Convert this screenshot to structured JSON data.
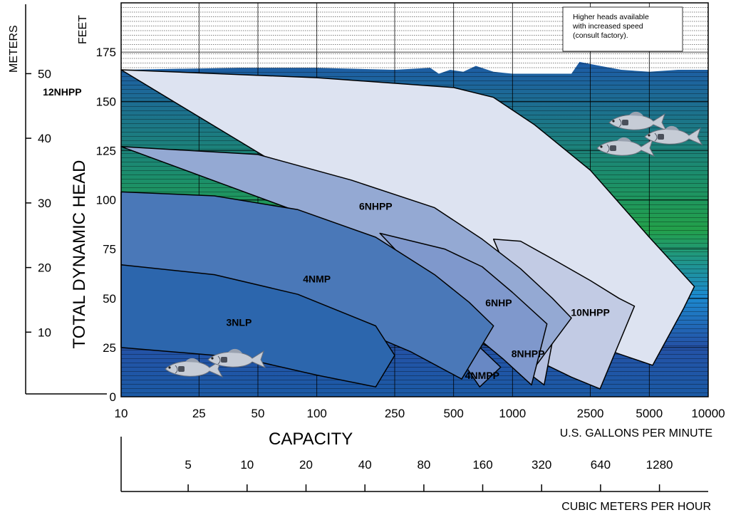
{
  "chart_data": {
    "type": "area",
    "title": "",
    "note_lines": [
      "Higher heads available",
      "with increased speed",
      "(consult factory)."
    ],
    "ylabel": "TOTAL DYNAMIC HEAD",
    "xlabel": "CAPACITY",
    "x_unit": "U.S. GALLONS PER MINUTE",
    "x_scale": "log",
    "xlim": [
      10,
      10000
    ],
    "x_ticks": [
      10,
      25,
      50,
      100,
      250,
      500,
      1000,
      2500,
      5000,
      10000
    ],
    "y_unit_feet": "FEET",
    "ylim_feet": [
      0,
      200
    ],
    "y_ticks_feet": [
      0,
      25,
      50,
      75,
      100,
      125,
      150,
      175
    ],
    "y_unit_meters": "METERS",
    "y_ticks_meters": [
      10,
      20,
      30,
      40,
      50
    ],
    "x2_unit": "CUBIC METERS PER HOUR",
    "x2_ticks": [
      5,
      10,
      20,
      40,
      80,
      160,
      320,
      640,
      1280
    ],
    "grid": true,
    "colors": {
      "12NHPP": "#dde3f1",
      "10NHPP": "#c2cbe4",
      "8NHPP": "#b4c0e0",
      "6NHPP": "#94a9d3",
      "6NHP": "#7f98cc",
      "4NMPP": "#6888c4",
      "4NMP": "#4a78b8",
      "3NLP": "#2c66ad",
      "water_top": "#1d5ba7",
      "water_green": "#23a04a",
      "water_blue": "#1c8ad0"
    },
    "series": [
      {
        "name": "12NHPP",
        "label_at": [
          5,
          153
        ],
        "points": [
          [
            10,
            166
          ],
          [
            100,
            162
          ],
          [
            500,
            157
          ],
          [
            800,
            152
          ],
          [
            1300,
            138
          ],
          [
            2500,
            115
          ],
          [
            5000,
            81
          ],
          [
            8500,
            56
          ],
          [
            7500,
            45
          ],
          [
            5200,
            16
          ],
          [
            3000,
            24
          ],
          [
            2000,
            33
          ],
          [
            1500,
            38
          ],
          [
            1000,
            46
          ]
        ]
      },
      {
        "name": "10NHPP",
        "label_at": [
          2500,
          41
        ],
        "points": [
          [
            800,
            80
          ],
          [
            1100,
            79
          ],
          [
            1600,
            70
          ],
          [
            2500,
            59
          ],
          [
            3500,
            50
          ],
          [
            4200,
            46
          ],
          [
            2800,
            4
          ],
          [
            2000,
            10
          ],
          [
            1500,
            16
          ]
        ]
      },
      {
        "name": "8NHPP",
        "label_at": [
          1200,
          20
        ],
        "points": [
          [
            950,
            56
          ],
          [
            1500,
            50
          ],
          [
            1650,
            35
          ],
          [
            1450,
            6
          ],
          [
            1100,
            15
          ]
        ]
      },
      {
        "name": "6NHPP",
        "label_at": [
          200,
          95
        ],
        "points": [
          [
            10,
            127
          ],
          [
            50,
            123
          ],
          [
            150,
            110
          ],
          [
            400,
            96
          ],
          [
            700,
            80
          ],
          [
            1100,
            65
          ],
          [
            1600,
            50
          ],
          [
            2000,
            40
          ],
          [
            1300,
            15
          ],
          [
            900,
            22
          ],
          [
            600,
            30
          ],
          [
            150,
            84
          ]
        ]
      },
      {
        "name": "6NHP",
        "label_at": [
          850,
          46
        ],
        "points": [
          [
            210,
            83
          ],
          [
            450,
            75
          ],
          [
            700,
            66
          ],
          [
            1000,
            53
          ],
          [
            1500,
            37
          ],
          [
            1250,
            6
          ],
          [
            900,
            19
          ],
          [
            700,
            28
          ]
        ]
      },
      {
        "name": "4NMPP",
        "label_at": [
          700,
          9
        ],
        "points": [
          [
            650,
            27
          ],
          [
            870,
            15
          ],
          [
            680,
            5
          ],
          [
            580,
            15
          ]
        ]
      },
      {
        "name": "4NMP",
        "label_at": [
          100,
          58
        ],
        "points": [
          [
            10,
            104
          ],
          [
            30,
            102
          ],
          [
            80,
            95
          ],
          [
            200,
            81
          ],
          [
            400,
            62
          ],
          [
            600,
            48
          ],
          [
            800,
            36
          ],
          [
            550,
            9
          ],
          [
            300,
            23
          ],
          [
            100,
            43
          ],
          [
            30,
            58
          ],
          [
            10,
            67
          ]
        ]
      },
      {
        "name": "3NLP",
        "label_at": [
          40,
          36
        ],
        "points": [
          [
            10,
            67
          ],
          [
            30,
            62
          ],
          [
            80,
            52
          ],
          [
            200,
            36
          ],
          [
            250,
            21
          ],
          [
            200,
            5
          ],
          [
            100,
            11
          ],
          [
            40,
            20
          ],
          [
            10,
            25
          ]
        ]
      }
    ]
  }
}
